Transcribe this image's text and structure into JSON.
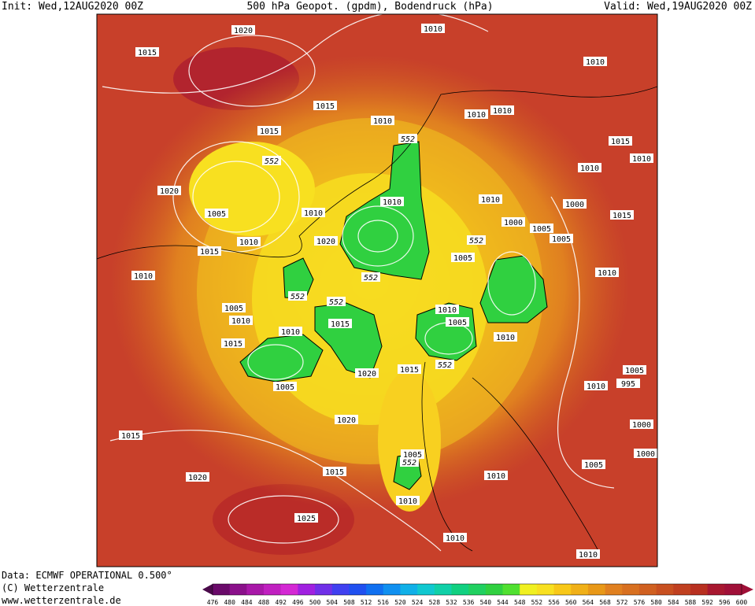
{
  "header": {
    "init": "Init: Wed,12AUG2020 00Z",
    "title": "500 hPa Geopot. (gpdm), Bodendruck (hPa)",
    "valid": "Valid: Wed,19AUG2020 00Z"
  },
  "footer": {
    "data": "Data: ECMWF OPERATIONAL 0.500°",
    "copyright": "(C) Wetterzentrale",
    "url": "www.wetterzentrale.de"
  },
  "map": {
    "pressure_labels": [
      "1020",
      "1015",
      "1010",
      "1010",
      "1015",
      "1010",
      "1010",
      "1010",
      "1015",
      "1015",
      "1010",
      "1010",
      "1020",
      "1005",
      "1010",
      "1010",
      "1010",
      "1000",
      "1000",
      "1005",
      "1005",
      "1015",
      "1010",
      "1020",
      "1015",
      "1005",
      "1010",
      "1010",
      "1005",
      "1010",
      "1010",
      "1005",
      "1015",
      "1010",
      "1015",
      "1010",
      "1020",
      "1015",
      "1005",
      "1010",
      "995",
      "1005",
      "1020",
      "1000",
      "1015",
      "1005",
      "1000",
      "1005",
      "1015",
      "1010",
      "1020",
      "1010",
      "1025",
      "1010",
      "1010"
    ],
    "geopotential_labels": [
      "552",
      "552",
      "552",
      "552",
      "552",
      "552",
      "552",
      "552"
    ]
  },
  "colorbar": {
    "labels": [
      476,
      480,
      484,
      488,
      492,
      496,
      500,
      504,
      508,
      512,
      516,
      520,
      524,
      528,
      532,
      536,
      540,
      544,
      548,
      552,
      556,
      560,
      564,
      568,
      572,
      576,
      580,
      584,
      588,
      592,
      596,
      600
    ],
    "colors": [
      "#4a0a4a",
      "#6a0a6a",
      "#8a108a",
      "#a818a8",
      "#c020c0",
      "#d428d4",
      "#a020e0",
      "#7030e8",
      "#4040f0",
      "#2050f0",
      "#1070f0",
      "#1090f0",
      "#10b0e8",
      "#10c8d0",
      "#10d0a8",
      "#10d080",
      "#20d060",
      "#30d040",
      "#50e030",
      "#f0f020",
      "#f8e020",
      "#f8c818",
      "#f0b018",
      "#e89818",
      "#e08020",
      "#d87020",
      "#d06020",
      "#c85020",
      "#c04020",
      "#b83020",
      "#a81830",
      "#a01038"
    ]
  }
}
